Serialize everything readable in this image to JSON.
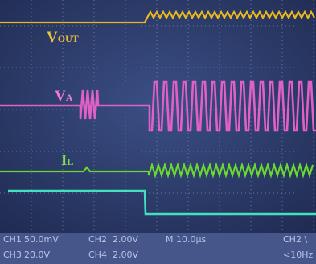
{
  "traces": [
    {
      "letter": "V",
      "subscript": "OUT"
    },
    {
      "letter": "V",
      "subscript": "A"
    },
    {
      "letter": "I",
      "subscript": "L"
    }
  ],
  "status": {
    "row1": [
      "CH1",
      "50.0mV",
      "CH2",
      "2.00V",
      "M 10.0µs",
      "CH2 \\"
    ],
    "row2": [
      "CH3",
      "20.0V",
      "CH4",
      "2.00V",
      "<10Hz"
    ]
  }
}
